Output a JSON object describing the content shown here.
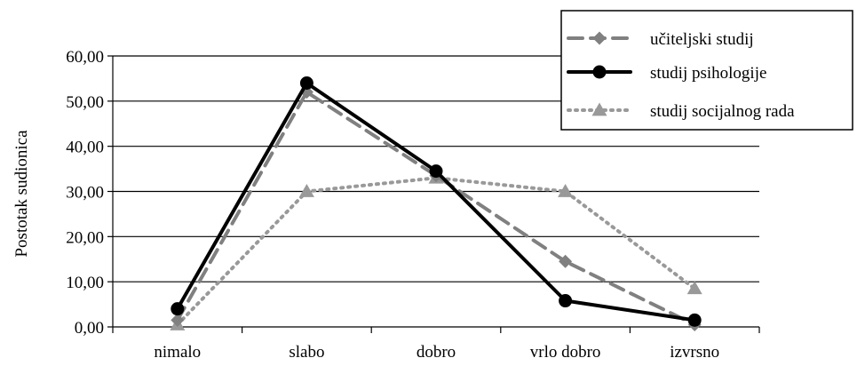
{
  "chart_data": {
    "type": "line",
    "categories": [
      "nimalo",
      "slabo",
      "dobro",
      "vrlo dobro",
      "izvrsno"
    ],
    "series": [
      {
        "name": "učiteljski studij",
        "values": [
          1.5,
          52.0,
          33.5,
          14.5,
          0.5
        ],
        "color": "#808080",
        "dash": "dashed",
        "marker": "diamond"
      },
      {
        "name": "studij psihologije",
        "values": [
          4.0,
          54.0,
          34.5,
          5.8,
          1.5
        ],
        "color": "#000000",
        "dash": "solid",
        "marker": "circle"
      },
      {
        "name": "studij socijalnog rada",
        "values": [
          0.5,
          30.0,
          33.0,
          30.0,
          8.5
        ],
        "color": "#999999",
        "dash": "dotted",
        "marker": "triangle"
      }
    ],
    "ylabel": "Postotak sudionica",
    "xlabel": "",
    "ylim": [
      0,
      60
    ],
    "yticks": [
      "0,00",
      "10,00",
      "20,00",
      "30,00",
      "40,00",
      "50,00",
      "60,00"
    ],
    "grid": true,
    "legend_position": "top-right"
  }
}
